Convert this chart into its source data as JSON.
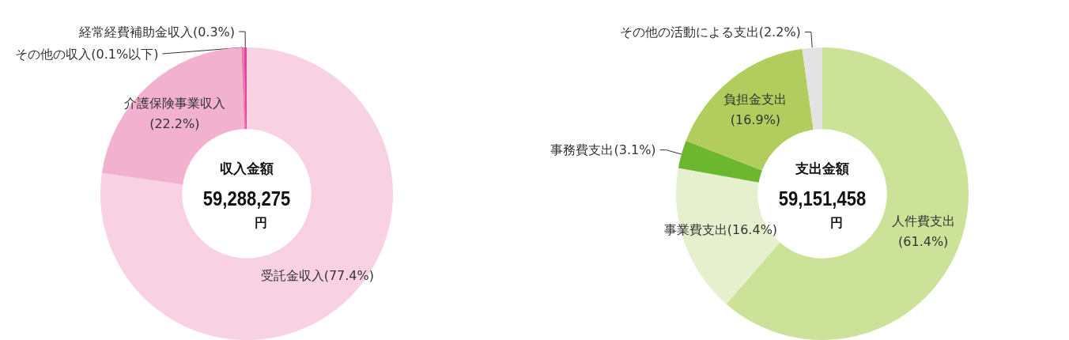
{
  "chart_data": [
    {
      "type": "donut",
      "categories": [
        "受託金収入",
        "介護保険事業収入",
        "その他の収入",
        "経常経費補助金収入"
      ],
      "values": [
        77.4,
        22.2,
        0.1,
        0.3
      ],
      "colors": [
        "#f8d1e3",
        "#f1b1cf",
        "#e878b0",
        "#e4479a"
      ],
      "value_labels": [
        "(77.4%)",
        "(22.2%)",
        "(0.1%以下)",
        "(0.3%)"
      ],
      "annotations": [
        "収入金額",
        "59,288,275",
        "円"
      ]
    },
    {
      "type": "donut",
      "categories": [
        "人件費支出",
        "事業費支出",
        "事務費支出",
        "負担金支出",
        "その他の活動による支出"
      ],
      "values": [
        61.4,
        16.4,
        3.1,
        16.9,
        2.2
      ],
      "colors": [
        "#cde299",
        "#e6f0cf",
        "#6cb72d",
        "#b2cc5e",
        "#e3e3e3"
      ],
      "value_labels": [
        "(61.4%)",
        "(16.4%)",
        "(3.1%)",
        "(16.9%)",
        "(2.2%)"
      ],
      "annotations": [
        "支出金額",
        "59,151,458",
        "円"
      ]
    }
  ]
}
